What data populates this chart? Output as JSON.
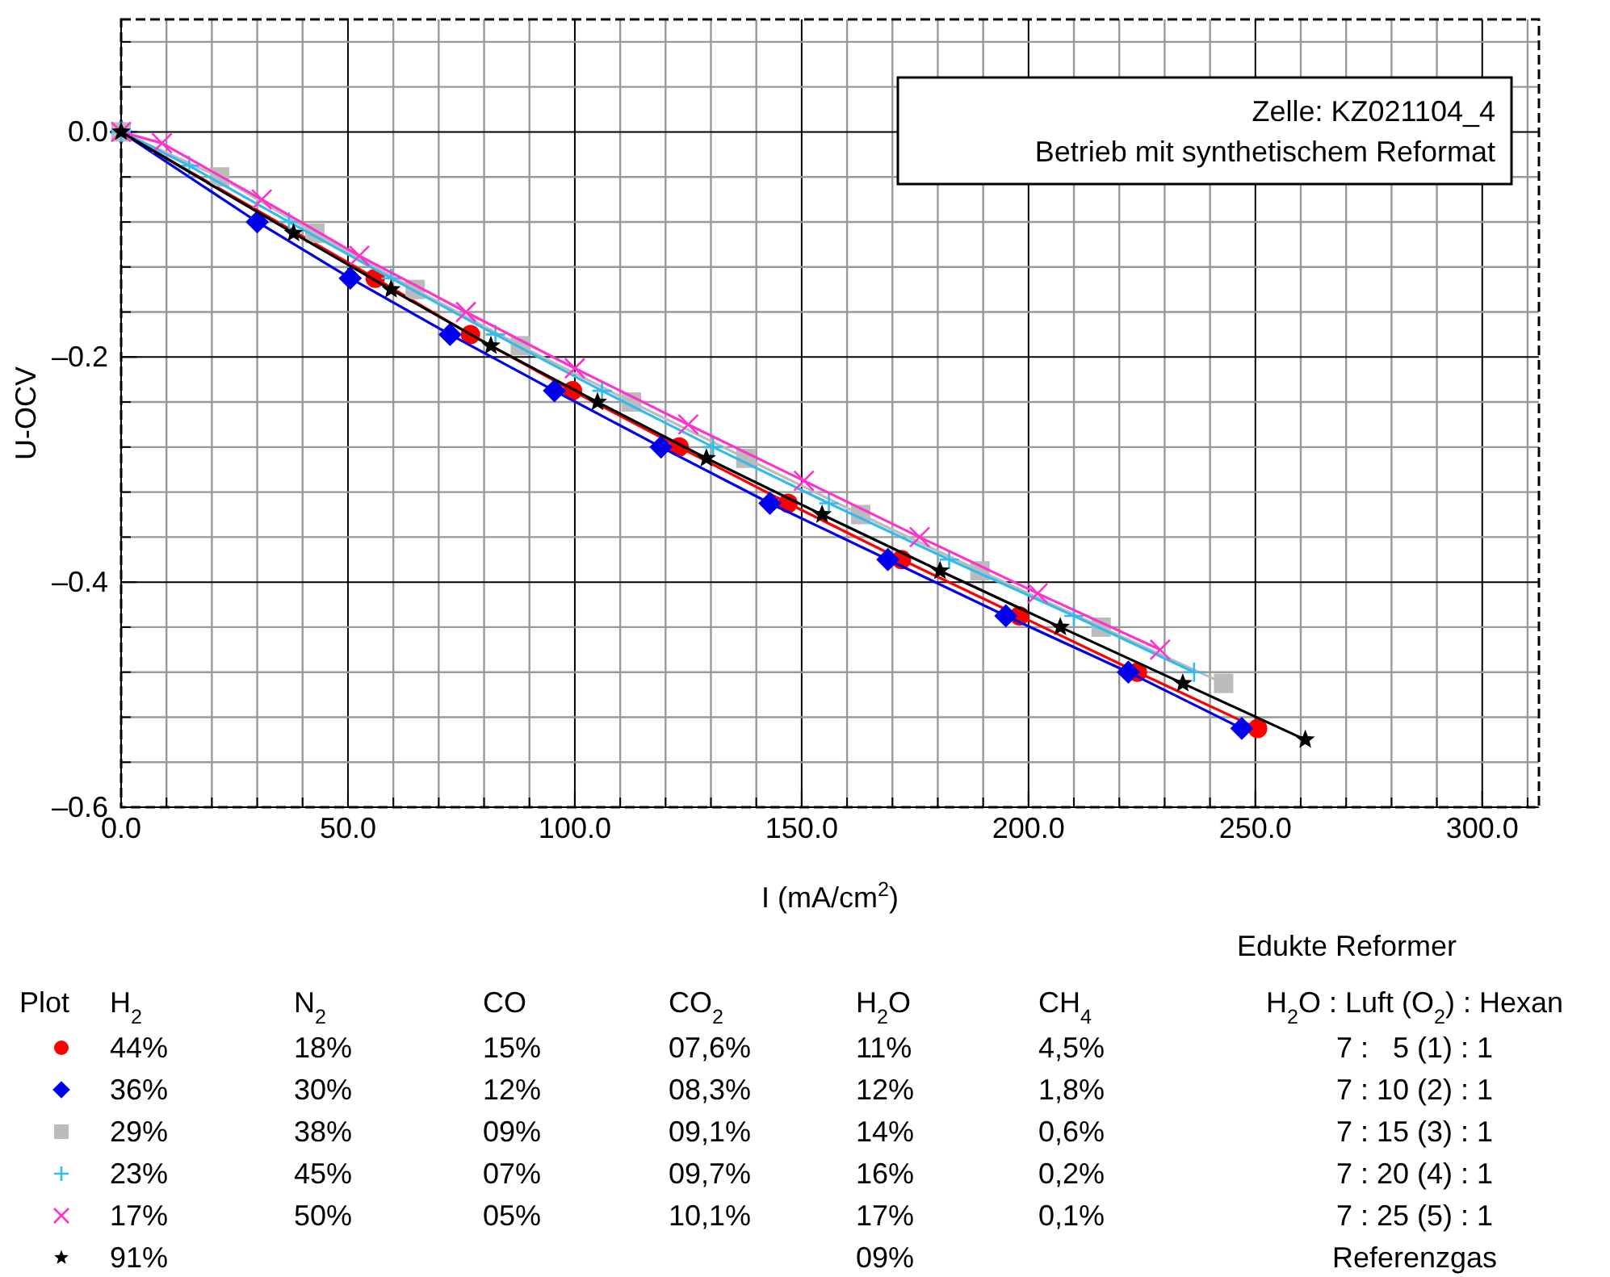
{
  "chart_data": {
    "type": "line",
    "xlabel": "I (mA/cm$^{2}$)",
    "ylabel": "U-OCV",
    "xlim": [
      0,
      312.5
    ],
    "ylim": [
      -0.6,
      0.1
    ],
    "xticks": [
      {
        "value": 0,
        "label": "0.0"
      },
      {
        "value": 10,
        "label": null
      },
      {
        "value": 20,
        "label": null
      },
      {
        "value": 30,
        "label": null
      },
      {
        "value": 40,
        "label": null
      },
      {
        "value": 50,
        "label": "50.0"
      },
      {
        "value": 60,
        "label": null
      },
      {
        "value": 70,
        "label": null
      },
      {
        "value": 80,
        "label": null
      },
      {
        "value": 90,
        "label": null
      },
      {
        "value": 100,
        "label": "100.0"
      },
      {
        "value": 110,
        "label": null
      },
      {
        "value": 120,
        "label": null
      },
      {
        "value": 130,
        "label": null
      },
      {
        "value": 140,
        "label": null
      },
      {
        "value": 150,
        "label": "150.0"
      },
      {
        "value": 160,
        "label": null
      },
      {
        "value": 170,
        "label": null
      },
      {
        "value": 180,
        "label": null
      },
      {
        "value": 190,
        "label": null
      },
      {
        "value": 200,
        "label": "200.0"
      },
      {
        "value": 210,
        "label": null
      },
      {
        "value": 220,
        "label": null
      },
      {
        "value": 230,
        "label": null
      },
      {
        "value": 240,
        "label": null
      },
      {
        "value": 250,
        "label": "250.0"
      },
      {
        "value": 260,
        "label": null
      },
      {
        "value": 270,
        "label": null
      },
      {
        "value": 280,
        "label": null
      },
      {
        "value": 290,
        "label": null
      },
      {
        "value": 300,
        "label": "300.0"
      },
      {
        "value": 310,
        "label": null
      }
    ],
    "yticks": [
      {
        "value": -0.6,
        "label": "–0.6"
      },
      {
        "value": -0.56,
        "label": null
      },
      {
        "value": -0.52,
        "label": null
      },
      {
        "value": -0.48,
        "label": null
      },
      {
        "value": -0.44,
        "label": null
      },
      {
        "value": -0.4,
        "label": "–0.4"
      },
      {
        "value": -0.36,
        "label": null
      },
      {
        "value": -0.32,
        "label": null
      },
      {
        "value": -0.28,
        "label": null
      },
      {
        "value": -0.24,
        "label": null
      },
      {
        "value": -0.2,
        "label": "–0.2"
      },
      {
        "value": -0.16,
        "label": null
      },
      {
        "value": -0.12,
        "label": null
      },
      {
        "value": -0.08,
        "label": null
      },
      {
        "value": -0.04,
        "label": null
      },
      {
        "value": 0,
        "label": "0.0"
      },
      {
        "value": 0.04,
        "label": null
      },
      {
        "value": 0.08,
        "label": null
      }
    ],
    "grid": true,
    "legend": "bottom",
    "line_style": "solid",
    "series": [
      {
        "name": "44%",
        "color": "#ff0000",
        "marker": "circle",
        "x": [
          0,
          56,
          77,
          99.5,
          123,
          147,
          172,
          198,
          224,
          250.5
        ],
        "values": [
          0,
          -0.13,
          -0.18,
          -0.23,
          -0.28,
          -0.33,
          -0.38,
          -0.43,
          -0.48,
          -0.53
        ]
      },
      {
        "name": "36%",
        "color": "#0000ee",
        "marker": "diamond",
        "x": [
          0,
          30,
          50.5,
          72.5,
          95.5,
          119,
          143,
          169,
          195,
          222,
          247
        ],
        "values": [
          0,
          -0.08,
          -0.13,
          -0.18,
          -0.23,
          -0.28,
          -0.33,
          -0.38,
          -0.43,
          -0.48,
          -0.53
        ]
      },
      {
        "name": "29%",
        "color": "#bbbbbb",
        "marker": "square",
        "x": [
          0,
          21.7,
          42.7,
          64.8,
          88,
          112.5,
          137.7,
          163,
          189.3,
          216,
          243
        ],
        "values": [
          0,
          -0.04,
          -0.09,
          -0.14,
          -0.19,
          -0.24,
          -0.29,
          -0.34,
          -0.39,
          -0.44,
          -0.49
        ]
      },
      {
        "name": "23%",
        "color": "#33bbee",
        "marker": "plus",
        "x": [
          0,
          15,
          37,
          59.5,
          82.5,
          106,
          130.5,
          156,
          182.5,
          210,
          236.5
        ],
        "values": [
          0,
          -0.03,
          -0.08,
          -0.13,
          -0.18,
          -0.23,
          -0.28,
          -0.33,
          -0.38,
          -0.43,
          -0.48
        ]
      },
      {
        "name": "17%",
        "color": "#ff33cc",
        "marker": "cross",
        "x": [
          0,
          9,
          31,
          52.5,
          76,
          100,
          125,
          150.5,
          176,
          202,
          229
        ],
        "values": [
          0,
          -0.01,
          -0.06,
          -0.11,
          -0.16,
          -0.21,
          -0.26,
          -0.31,
          -0.36,
          -0.41,
          -0.46
        ]
      },
      {
        "name": "91%",
        "color": "#000000",
        "marker": "star",
        "x": [
          0,
          38,
          59.5,
          81.5,
          105,
          129,
          154.5,
          180.5,
          207,
          234,
          261
        ],
        "values": [
          0,
          -0.09,
          -0.14,
          -0.19,
          -0.24,
          -0.29,
          -0.34,
          -0.39,
          -0.44,
          -0.49,
          -0.54
        ]
      }
    ],
    "annotations": [
      "Zelle: KZ021104_4",
      "Betrieb mit synthetischem Reformat",
      "Edukte Reformer",
      "Plot",
      "H$_{2}$",
      "N$_{2}$",
      "CO",
      "CO$_{2}$",
      "H$_{2}$O",
      "CH$_{4}$",
      "H$_{2}$O : Luft (O$_{2}$) : Hexan",
      "18%",
      "15%",
      "07,6%",
      "11%",
      "4,5%",
      "7 :   5 (1) : 1",
      "30%",
      "12%",
      "08,3%",
      "12%",
      "1,8%",
      "7 : 10 (2) : 1",
      "38%",
      "09%",
      "09,1%",
      "14%",
      "0,6%",
      "7 : 15 (3) : 1",
      "45%",
      "07%",
      "09,7%",
      "16%",
      "0,2%",
      "7 : 20 (4) : 1",
      "50%",
      "05%",
      "10,1%",
      "17%",
      "0,1%",
      "7 : 25 (5) : 1",
      "09%",
      "Referenzgas"
    ]
  }
}
